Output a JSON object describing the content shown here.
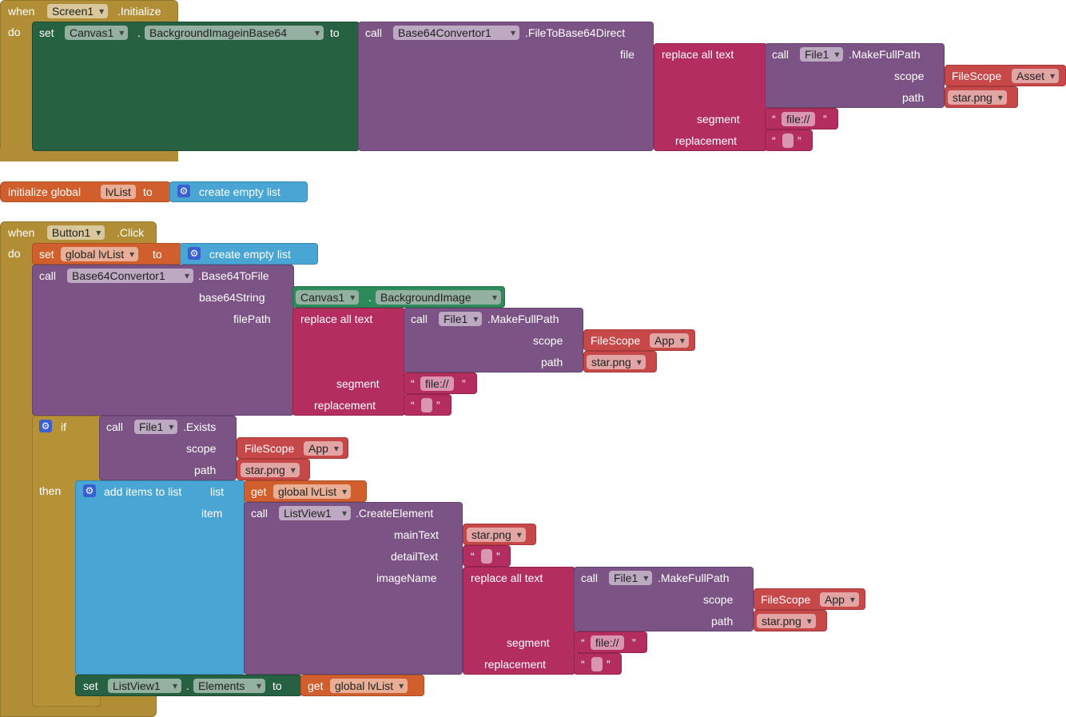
{
  "common": {
    "when": "when",
    "do": "do",
    "set": "set",
    "to": "to",
    "call": "call",
    "get": "get",
    "replace_all_text": "replace all text",
    "segment": "segment",
    "replacement": "replacement",
    "scope": "scope",
    "path": "path",
    "file_scope": "FileScope",
    "make_full_path": ".MakeFullPath",
    "file1": "File1",
    "file_prefix": "file://",
    "star_png": "star.png",
    "open_quote": "“",
    "close_quote": "”",
    "create_empty_list": "create empty list",
    "gear_glyph": "⚙"
  },
  "screen_init": {
    "component": "Screen1",
    "event": ".Initialize",
    "canvas": "Canvas1",
    "property": "BackgroundImageinBase64",
    "convertor": "Base64Convertor1",
    "method": ".FileToBase64Direct",
    "file_label": "file",
    "scope_value": "Asset"
  },
  "global_init": {
    "label": "initialize global",
    "name": "lvList"
  },
  "button_click": {
    "component": "Button1",
    "event": ".Click",
    "set_var": "global lvList",
    "convertor": "Base64Convertor1",
    "method": ".Base64ToFile",
    "base64_label": "base64String",
    "filepath_label": "filePath",
    "canvas": "Canvas1",
    "canvas_property": "BackgroundImage",
    "scope_value": "App",
    "if_label": "if",
    "then_label": "then",
    "exists_method": ".Exists",
    "add_items_label": "add items to list",
    "list_label": "list",
    "item_label": "item",
    "get_var": "global lvList",
    "listview": "ListView1",
    "create_element": ".CreateElement",
    "main_text_label": "mainText",
    "detail_text_label": "detailText",
    "image_name_label": "imageName",
    "elements_property": "Elements"
  }
}
